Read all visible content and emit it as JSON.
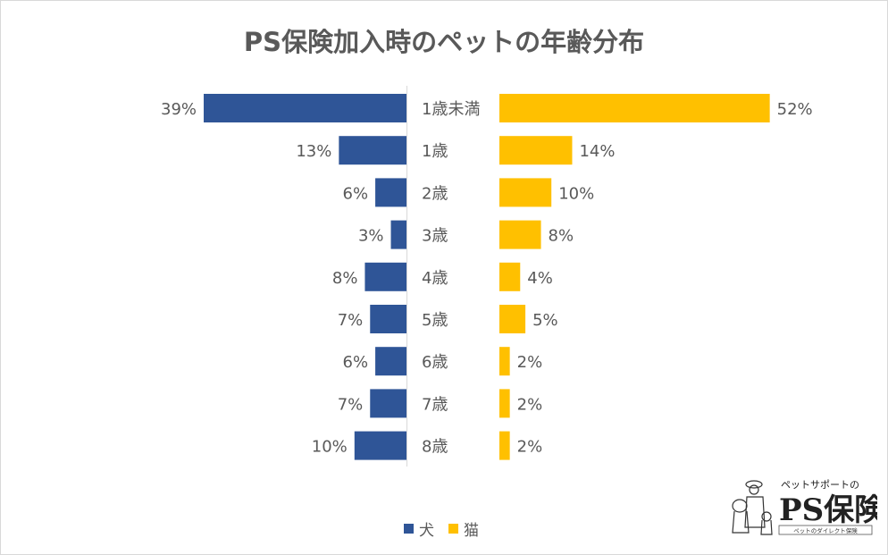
{
  "chart_data": {
    "type": "bar",
    "orientation": "horizontal-butterfly",
    "title": "PS保険加入時のペットの年齢分布",
    "categories": [
      "1歳未満",
      "1歳",
      "2歳",
      "3歳",
      "4歳",
      "5歳",
      "6歳",
      "7歳",
      "8歳"
    ],
    "series": [
      {
        "name": "犬",
        "color": "#2F5597",
        "values": [
          39,
          13,
          6,
          3,
          8,
          7,
          6,
          7,
          10
        ],
        "labels": [
          "39%",
          "13%",
          "6%",
          "3%",
          "8%",
          "7%",
          "6%",
          "7%",
          "10%"
        ]
      },
      {
        "name": "猫",
        "color": "#FFC000",
        "values": [
          52,
          14,
          10,
          8,
          4,
          5,
          2,
          2,
          2
        ],
        "labels": [
          "52%",
          "14%",
          "10%",
          "8%",
          "4%",
          "5%",
          "2%",
          "2%",
          "2%"
        ]
      }
    ],
    "unit": "%",
    "legend_position": "bottom"
  },
  "logo": {
    "top": "ペットサポートの",
    "main": "PS保険",
    "sub": "ペットのダイレクト保険"
  }
}
